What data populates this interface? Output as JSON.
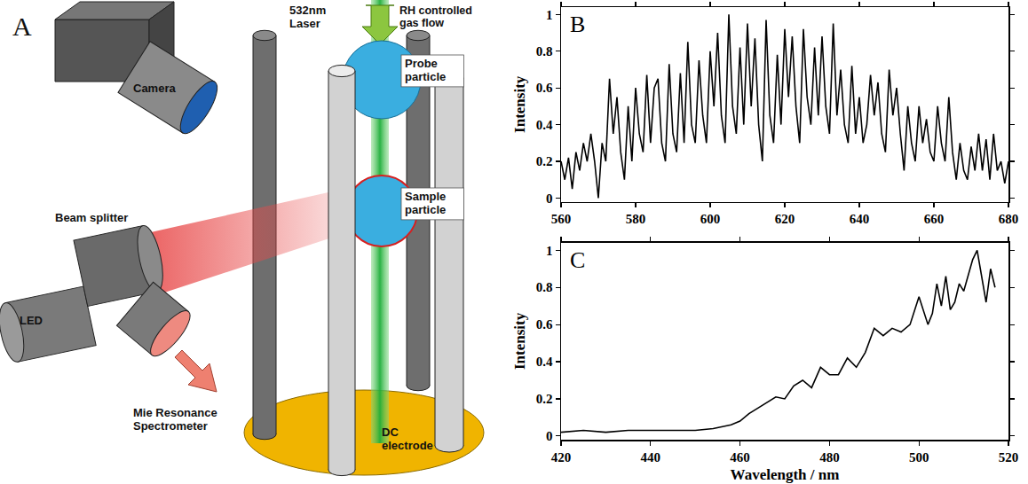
{
  "diagram": {
    "letter": "A",
    "labels": {
      "laser": [
        "532nm",
        "Laser"
      ],
      "gas_flow": [
        "RH controlled",
        "gas flow"
      ],
      "camera": [
        "Camera"
      ],
      "probe": [
        "Probe",
        "particle"
      ],
      "sample": [
        "Sample",
        "particle"
      ],
      "beam_splitter": [
        "Beam splitter"
      ],
      "led": [
        "LED"
      ],
      "spectrometer": [
        "Mie Resonance",
        "Spectrometer"
      ],
      "electrode": [
        "DC",
        "electrode"
      ]
    }
  },
  "chart_data": [
    {
      "type": "line",
      "title": "B",
      "y_label": "Intensity",
      "color": "#000000",
      "x": [
        560,
        561,
        562,
        563,
        564,
        565,
        566,
        567,
        568,
        569,
        570,
        571,
        572,
        573,
        574,
        575,
        576,
        577,
        578,
        579,
        580,
        581,
        582,
        583,
        584,
        585,
        586,
        587,
        588,
        589,
        590,
        591,
        592,
        593,
        594,
        595,
        596,
        597,
        598,
        599,
        600,
        601,
        602,
        603,
        604,
        605,
        606,
        607,
        608,
        609,
        610,
        611,
        612,
        613,
        614,
        615,
        616,
        617,
        618,
        619,
        620,
        621,
        622,
        623,
        624,
        625,
        626,
        627,
        628,
        629,
        630,
        631,
        632,
        633,
        634,
        635,
        636,
        637,
        638,
        639,
        640,
        641,
        642,
        643,
        644,
        645,
        646,
        647,
        648,
        649,
        650,
        651,
        652,
        653,
        654,
        655,
        656,
        657,
        658,
        659,
        660,
        661,
        662,
        663,
        664,
        665,
        666,
        667,
        668,
        669,
        670,
        671,
        672,
        673,
        674,
        675,
        676,
        677,
        678,
        679,
        680
      ],
      "values": [
        0.2,
        0.1,
        0.22,
        0.05,
        0.25,
        0.15,
        0.3,
        0.2,
        0.35,
        0.2,
        0.0,
        0.3,
        0.2,
        0.65,
        0.35,
        0.55,
        0.25,
        0.1,
        0.5,
        0.2,
        0.6,
        0.35,
        0.25,
        0.67,
        0.3,
        0.6,
        0.65,
        0.3,
        0.2,
        0.73,
        0.35,
        0.25,
        0.68,
        0.3,
        0.85,
        0.4,
        0.3,
        0.75,
        0.45,
        0.3,
        0.8,
        0.5,
        0.9,
        0.45,
        0.3,
        1.0,
        0.5,
        0.35,
        0.82,
        0.4,
        0.95,
        0.5,
        0.87,
        0.4,
        0.2,
        0.97,
        0.45,
        0.3,
        0.78,
        0.4,
        0.92,
        0.55,
        0.88,
        0.5,
        0.3,
        0.92,
        0.55,
        0.4,
        0.82,
        0.45,
        0.88,
        0.5,
        0.35,
        0.95,
        0.45,
        0.7,
        0.4,
        0.3,
        0.72,
        0.35,
        0.55,
        0.3,
        0.4,
        0.67,
        0.45,
        0.63,
        0.35,
        0.25,
        0.7,
        0.45,
        0.6,
        0.35,
        0.15,
        0.5,
        0.3,
        0.2,
        0.5,
        0.3,
        0.43,
        0.25,
        0.2,
        0.5,
        0.3,
        0.2,
        0.55,
        0.25,
        0.1,
        0.3,
        0.15,
        0.1,
        0.28,
        0.15,
        0.35,
        0.15,
        0.32,
        0.1,
        0.35,
        0.15,
        0.2,
        0.08,
        0.2
      ],
      "xlim": [
        560,
        680
      ],
      "xticks": [
        560,
        580,
        600,
        620,
        640,
        660,
        680
      ],
      "ylim": [
        -0.02,
        1.04
      ],
      "yticks": [
        0,
        0.2,
        0.4,
        0.6,
        0.8,
        1
      ],
      "grid": false
    },
    {
      "type": "line",
      "title": "C",
      "x_label": "Wavelength / nm",
      "y_label": "Intensity",
      "color": "#000000",
      "x": [
        420,
        425,
        430,
        435,
        440,
        445,
        450,
        454,
        456,
        458,
        460,
        462,
        464,
        466,
        468,
        470,
        472,
        474,
        476,
        478,
        480,
        482,
        484,
        486,
        488,
        490,
        492,
        494,
        496,
        498,
        500,
        502,
        503,
        504,
        505,
        506,
        507,
        508,
        509,
        510,
        511,
        512,
        513,
        514,
        515,
        516,
        517
      ],
      "values": [
        0.02,
        0.03,
        0.02,
        0.03,
        0.03,
        0.03,
        0.03,
        0.04,
        0.05,
        0.06,
        0.08,
        0.12,
        0.15,
        0.18,
        0.21,
        0.2,
        0.27,
        0.3,
        0.26,
        0.37,
        0.33,
        0.33,
        0.42,
        0.37,
        0.45,
        0.58,
        0.54,
        0.58,
        0.56,
        0.6,
        0.75,
        0.6,
        0.66,
        0.82,
        0.7,
        0.86,
        0.68,
        0.72,
        0.82,
        0.78,
        0.87,
        0.95,
        1.0,
        0.86,
        0.72,
        0.9,
        0.8
      ],
      "xlim": [
        420,
        520
      ],
      "xticks": [
        420,
        440,
        460,
        480,
        500,
        520
      ],
      "ylim": [
        -0.02,
        1.04
      ],
      "yticks": [
        0,
        0.2,
        0.4,
        0.6,
        0.8,
        1
      ],
      "grid": false
    }
  ]
}
